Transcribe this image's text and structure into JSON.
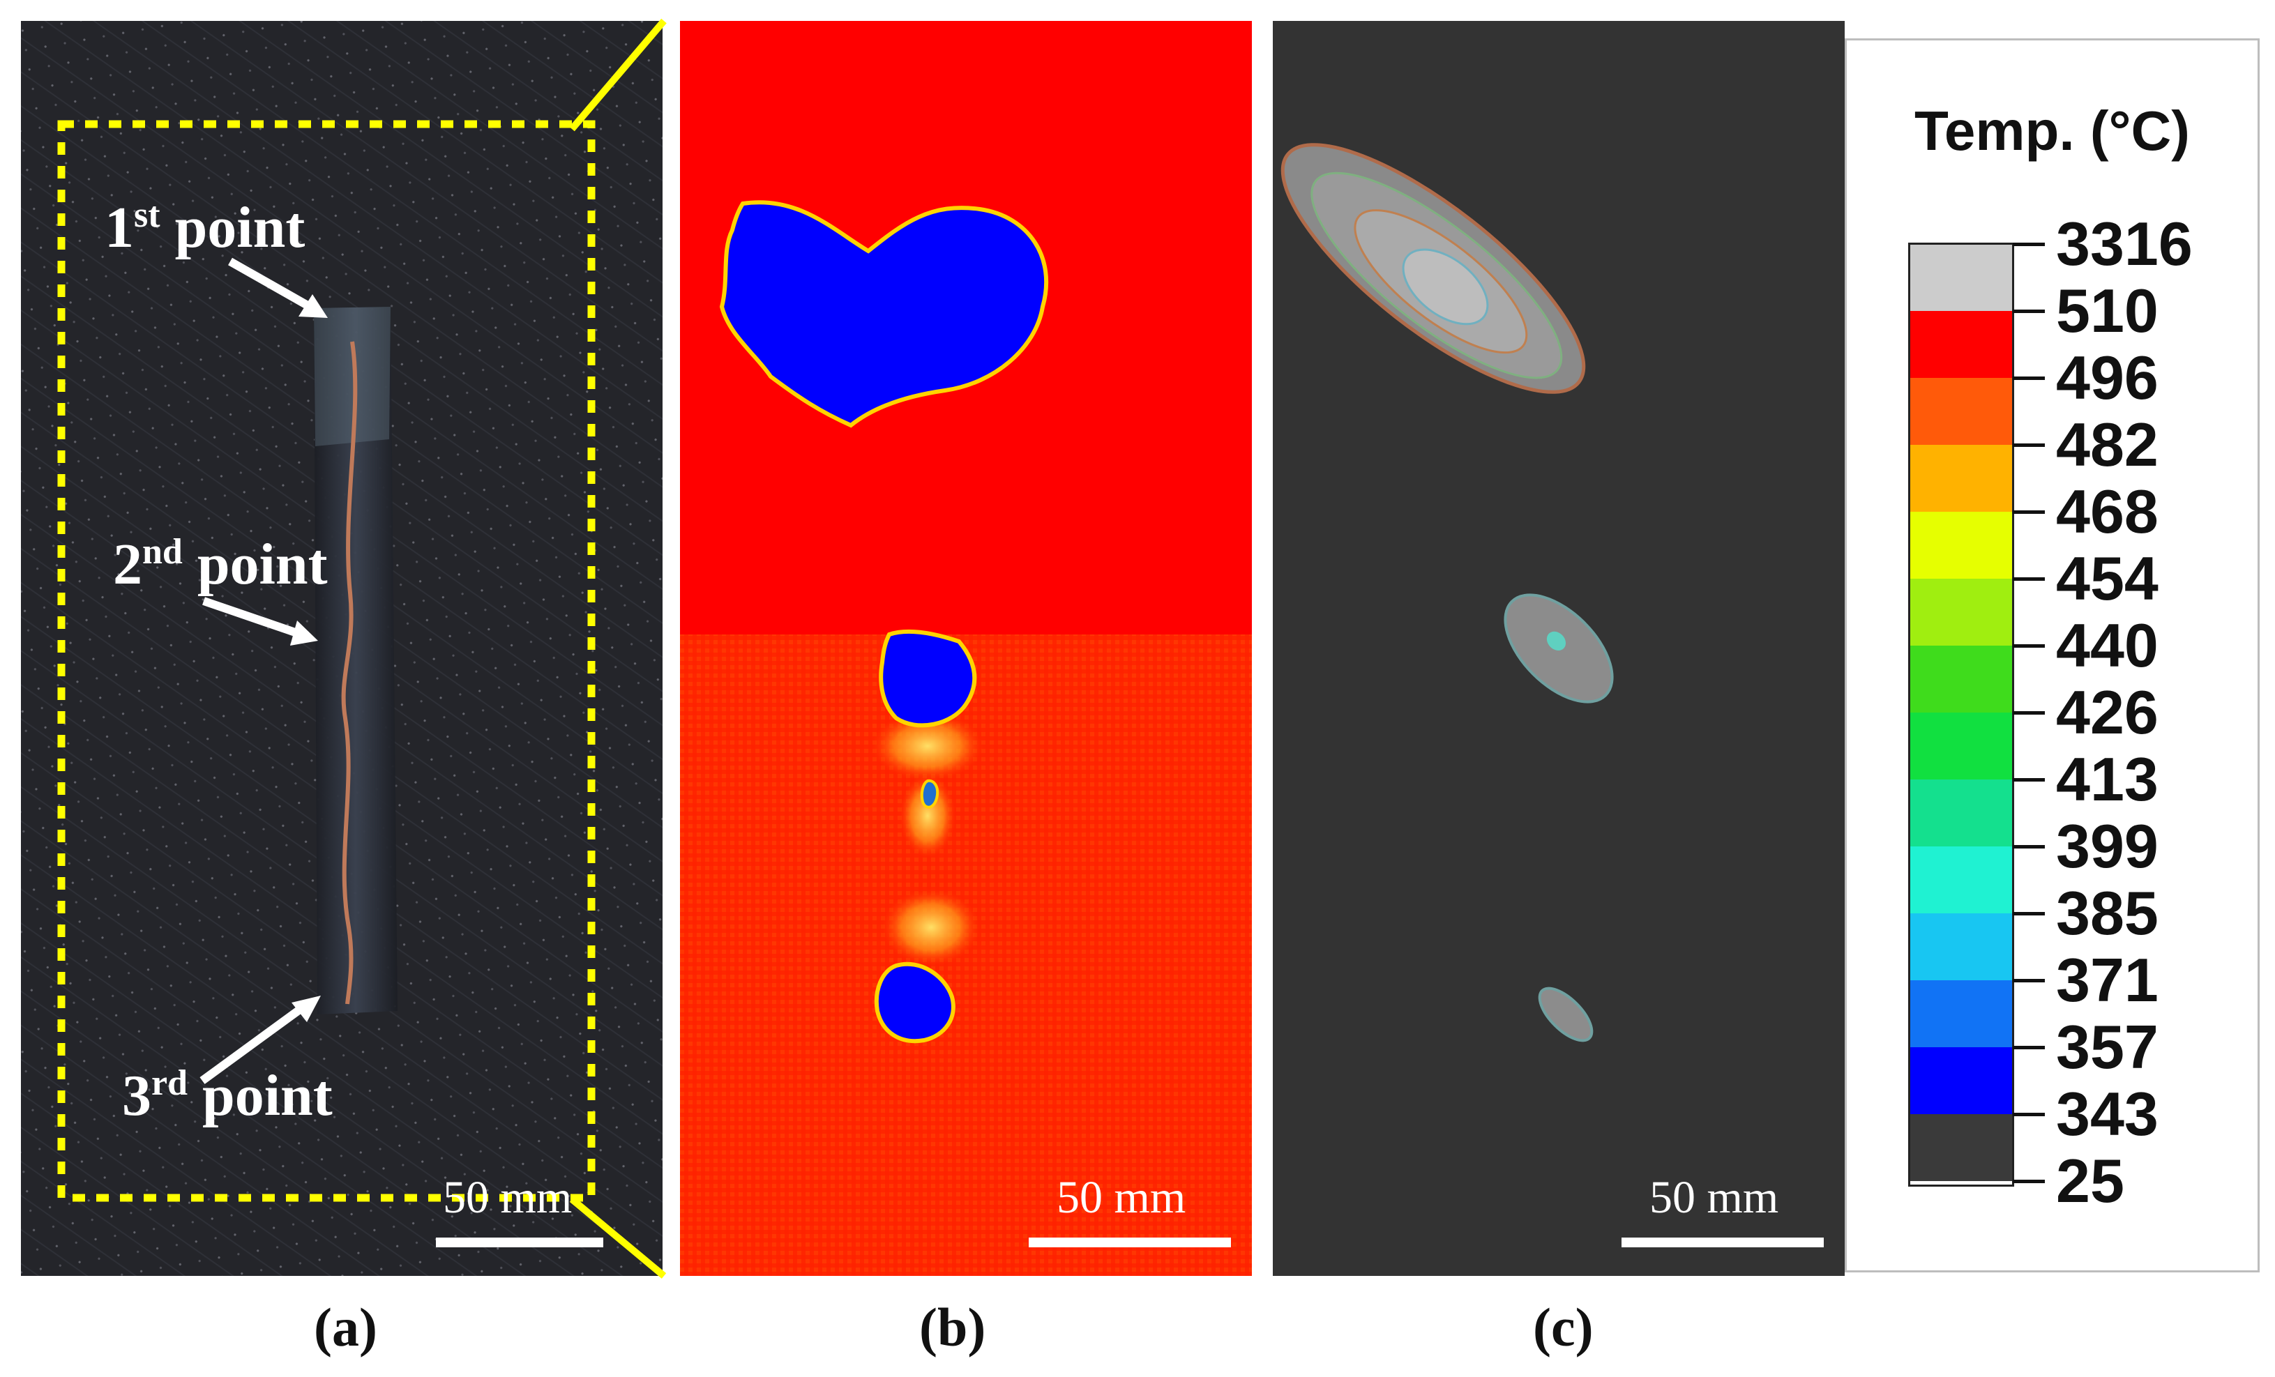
{
  "panel_a": {
    "points": [
      {
        "ordinal": "1",
        "suffix": "st",
        "word": "point"
      },
      {
        "ordinal": "2",
        "suffix": "nd",
        "word": "point"
      },
      {
        "ordinal": "3",
        "suffix": "rd",
        "word": "point"
      }
    ],
    "scale_label": "50 mm",
    "letter": "(a)"
  },
  "panel_b": {
    "scale_label": "50 mm",
    "letter": "(b)"
  },
  "panel_c": {
    "scale_label": "50 mm",
    "letter": "(c)"
  },
  "legend": {
    "title": "Temp. (°C)",
    "values": [
      "3316",
      "510",
      "496",
      "482",
      "468",
      "454",
      "440",
      "426",
      "413",
      "399",
      "385",
      "371",
      "357",
      "343",
      "25"
    ],
    "colors": [
      "#cccccc",
      "#ff0000",
      "#ff5a0a",
      "#ffb200",
      "#e6ff00",
      "#a0ee10",
      "#3fdc1c",
      "#11e040",
      "#14e08e",
      "#1ff2d2",
      "#18c6f2",
      "#1173f5",
      "#0000ff",
      "#3a3a3a"
    ]
  },
  "colors": {
    "accent_yellow": "#ffff00",
    "hot_red": "#ff0000",
    "cool_blue": "#0000ff",
    "background_gray": "#333333"
  }
}
